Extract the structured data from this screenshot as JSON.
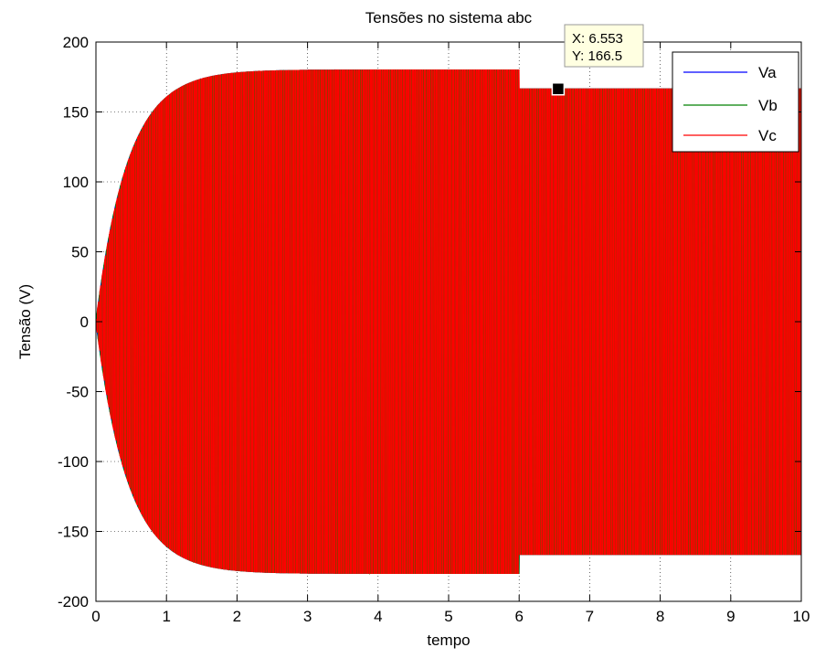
{
  "chart_data": {
    "type": "line",
    "title": "Tensões no sistema abc",
    "xlabel": "tempo",
    "ylabel": "Tensão (V)",
    "xlim": [
      0,
      10
    ],
    "ylim": [
      -200,
      200
    ],
    "xticks": [
      0,
      1,
      2,
      3,
      4,
      5,
      6,
      7,
      8,
      9,
      10
    ],
    "yticks": [
      -200,
      -150,
      -100,
      -50,
      0,
      50,
      100,
      150,
      200
    ],
    "grid": true,
    "legend_position": "top-right",
    "series": [
      {
        "name": "Va",
        "color": "#0000ff",
        "phase_deg": 0
      },
      {
        "name": "Vb",
        "color": "#008000",
        "phase_deg": -120
      },
      {
        "name": "Vc",
        "color": "#ff0000",
        "phase_deg": 120
      }
    ],
    "envelope": {
      "steady_amplitude_before": 180,
      "steady_amplitude_after": 166.5,
      "step_time": 6,
      "rise_time_constant": 0.45
    },
    "datatip": {
      "x": 6.553,
      "y": 166.5,
      "x_label": "X: 6.553",
      "y_label": "Y: 166.5"
    }
  }
}
